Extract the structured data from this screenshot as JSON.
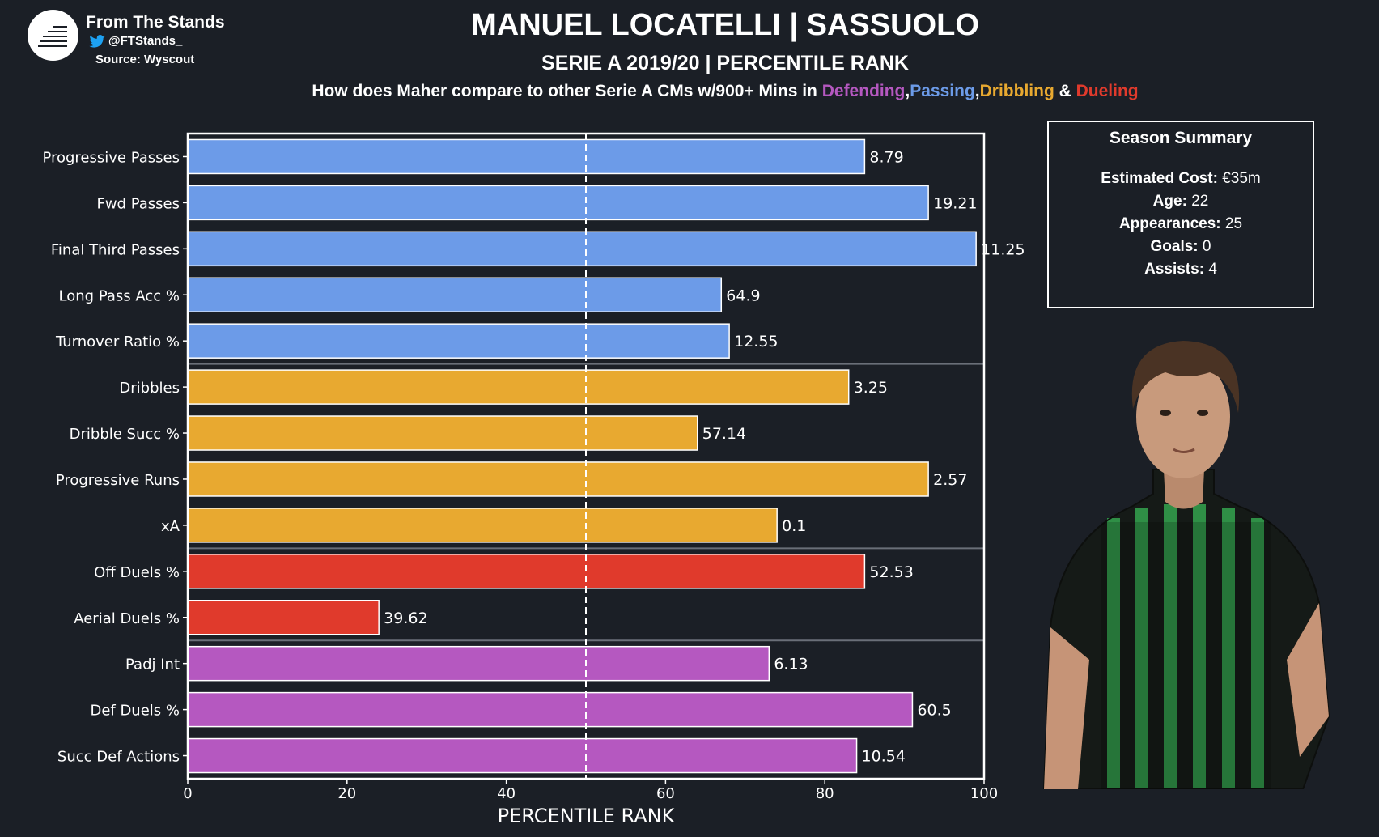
{
  "brand": {
    "name": "From The Stands",
    "handle": "@FTStands_",
    "source": "Source: Wyscout",
    "logo_icon": "stacked-lines-logo",
    "bird_icon": "twitter-bird-icon",
    "bird_color": "#1da1f2"
  },
  "header": {
    "title": "MANUEL LOCATELLI | SASSUOLO",
    "subtitle": "SERIE A 2019/20 | PERCENTILE RANK",
    "question_prefix": "How does Maher compare to other Serie A CMs w/900+ Mins in ",
    "cat_defending": "Defending",
    "sep1": ",",
    "cat_passing": "Passing",
    "sep2": ",",
    "cat_dribbling": "Dribbling",
    "sep3": " & ",
    "cat_dueling": "Dueling"
  },
  "colors": {
    "background": "#1b1f26",
    "passing": "#6c9be8",
    "dribbling": "#e8a930",
    "dueling": "#e03a2c",
    "defending": "#b558c0"
  },
  "summary": {
    "title": "Season Summary",
    "rows": [
      {
        "label": "Estimated Cost:",
        "value": "€35m"
      },
      {
        "label": "Age:",
        "value": "22"
      },
      {
        "label": "Appearances:",
        "value": "25"
      },
      {
        "label": "Goals:",
        "value": "0"
      },
      {
        "label": "Assists:",
        "value": "4"
      }
    ]
  },
  "chart_data": {
    "type": "bar",
    "orientation": "horizontal",
    "xlabel": "PERCENTILE RANK",
    "xlim": [
      0,
      100
    ],
    "xticks": [
      0,
      20,
      40,
      60,
      80,
      100
    ],
    "reference_line": 50,
    "group_dividers_after": [
      4,
      8,
      10
    ],
    "bars": [
      {
        "category": "Progressive Passes",
        "percentile": 85,
        "label": "8.79",
        "group": "passing"
      },
      {
        "category": "Fwd Passes",
        "percentile": 93,
        "label": "19.21",
        "group": "passing"
      },
      {
        "category": "Final Third Passes",
        "percentile": 99,
        "label": "11.25",
        "group": "passing"
      },
      {
        "category": "Long Pass Acc %",
        "percentile": 67,
        "label": "64.9",
        "group": "passing"
      },
      {
        "category": "Turnover Ratio %",
        "percentile": 68,
        "label": "12.55",
        "group": "passing"
      },
      {
        "category": "Dribbles",
        "percentile": 83,
        "label": "3.25",
        "group": "dribbling"
      },
      {
        "category": "Dribble Succ %",
        "percentile": 64,
        "label": "57.14",
        "group": "dribbling"
      },
      {
        "category": "Progressive Runs",
        "percentile": 93,
        "label": "2.57",
        "group": "dribbling"
      },
      {
        "category": "xA",
        "percentile": 74,
        "label": "0.1",
        "group": "dribbling"
      },
      {
        "category": "Off Duels %",
        "percentile": 85,
        "label": "52.53",
        "group": "dueling"
      },
      {
        "category": "Aerial Duels %",
        "percentile": 24,
        "label": "39.62",
        "group": "dueling"
      },
      {
        "category": "Padj Int",
        "percentile": 73,
        "label": "6.13",
        "group": "defending"
      },
      {
        "category": "Def Duels %",
        "percentile": 91,
        "label": "60.5",
        "group": "defending"
      },
      {
        "category": "Succ Def Actions",
        "percentile": 84,
        "label": "10.54",
        "group": "defending"
      }
    ]
  }
}
